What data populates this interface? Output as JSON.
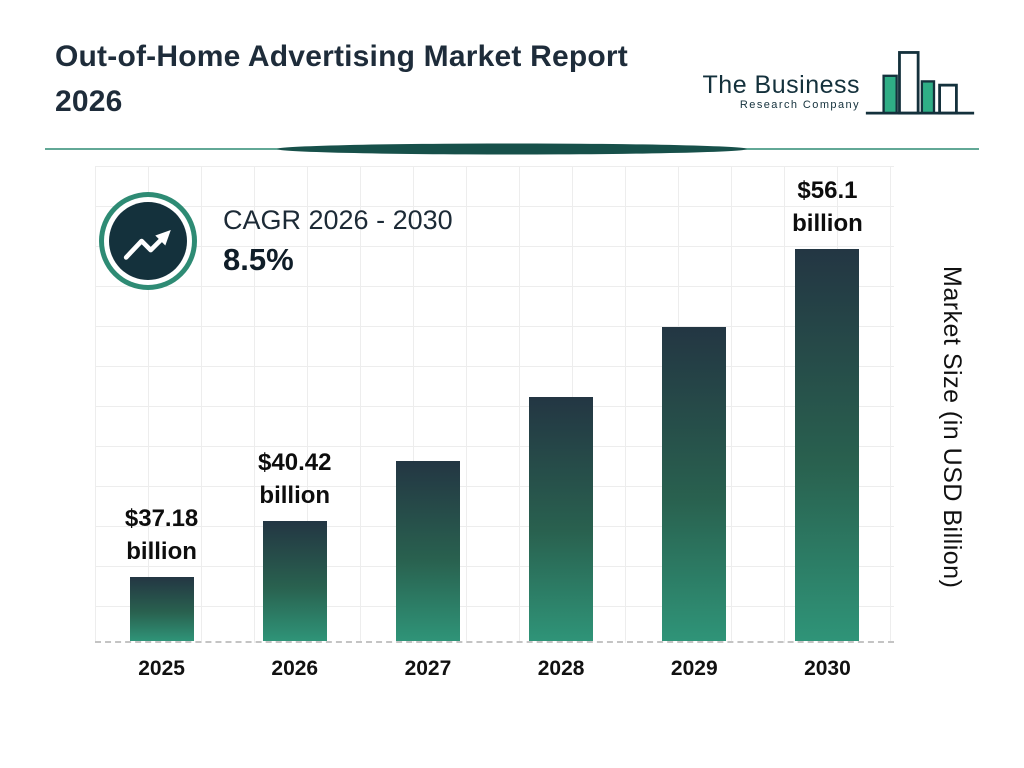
{
  "header": {
    "title": "Out-of-Home Advertising Market Report 2026",
    "logo": {
      "name": "The Business",
      "tagline": "Research Company"
    }
  },
  "cagr": {
    "label": "CAGR 2026 - 2030",
    "value": "8.5%"
  },
  "chart_data": {
    "type": "bar",
    "title": "Out-of-Home Advertising Market Report 2026",
    "categories": [
      "2025",
      "2026",
      "2027",
      "2028",
      "2029",
      "2030"
    ],
    "values": [
      37.18,
      40.42,
      43.86,
      47.58,
      51.62,
      56.1
    ],
    "bar_labels": [
      "$37.18 billion",
      "$40.42 billion",
      "",
      "",
      "",
      "$56.1 billion"
    ],
    "xlabel": "",
    "ylabel": "Market Size (in USD Billion)",
    "ylim_estimated": [
      33,
      58
    ],
    "grid": true,
    "legend_position": "none",
    "colors": {
      "bar_gradient_top": "#233643",
      "bar_gradient_bottom": "#2f9478",
      "accent_teal": "#2e8b74",
      "dark_navy": "#14313c",
      "logo_teal": "#2fae86"
    }
  }
}
